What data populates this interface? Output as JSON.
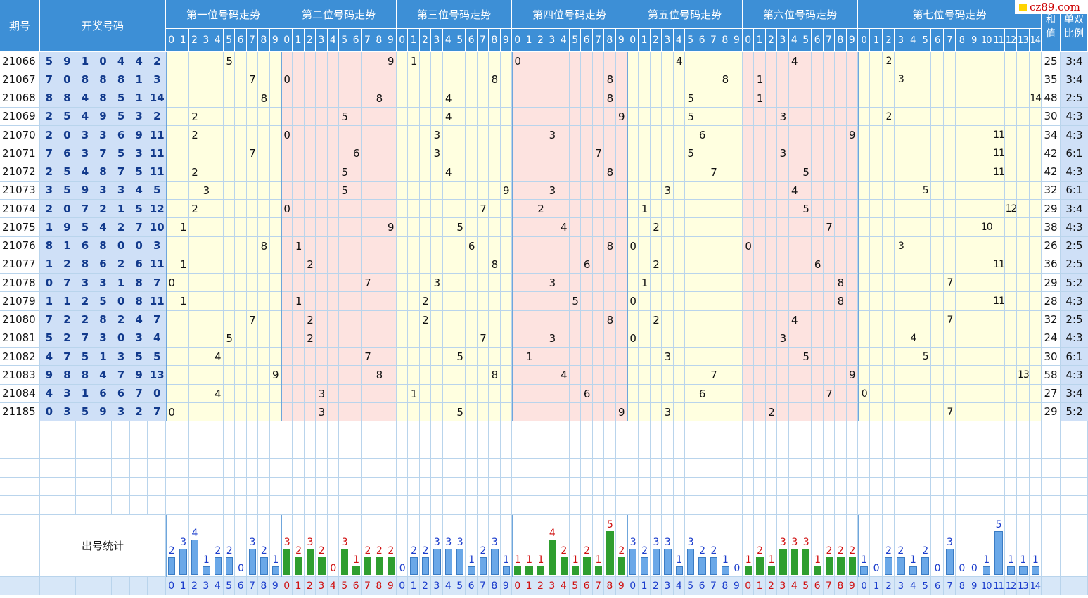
{
  "logo": "cz89.com",
  "headers": {
    "issue": "期号",
    "draw": "开奖号码",
    "positions": [
      "第一位号码走势",
      "第二位号码走势",
      "第三位号码走势",
      "第四位号码走势",
      "第五位号码走势",
      "第六位号码走势",
      "第七位号码走势"
    ],
    "sum_top": "和",
    "sum_bottom": "值",
    "ratio_top": "单双",
    "ratio_bottom": "比例"
  },
  "stat_label": "出号统计",
  "colors": {
    "header": "#3d8fd6",
    "draw_bg": "#cfe0f7",
    "zone_yellow": "#ffffe0",
    "zone_pink": "#fde3e0",
    "bar_blue": "#6aa8e8",
    "bar_green": "#2f9e2f",
    "label_blue": "#1a3ccc",
    "label_red": "#d01010"
  },
  "chart_data": {
    "type": "table",
    "digits_per_position": [
      10,
      10,
      10,
      10,
      10,
      10,
      15
    ],
    "rows": [
      {
        "issue": "21066",
        "draw": [
          5,
          9,
          1,
          0,
          4,
          4,
          2
        ],
        "sum": "25",
        "ratio": "3:4"
      },
      {
        "issue": "21067",
        "draw": [
          7,
          0,
          8,
          8,
          8,
          1,
          3
        ],
        "sum": "35",
        "ratio": "3:4"
      },
      {
        "issue": "21068",
        "draw": [
          8,
          8,
          4,
          8,
          5,
          1,
          14
        ],
        "sum": "48",
        "ratio": "2:5"
      },
      {
        "issue": "21069",
        "draw": [
          2,
          5,
          4,
          9,
          5,
          3,
          2
        ],
        "sum": "30",
        "ratio": "4:3"
      },
      {
        "issue": "21070",
        "draw": [
          2,
          0,
          3,
          3,
          6,
          9,
          11
        ],
        "sum": "34",
        "ratio": "4:3"
      },
      {
        "issue": "21071",
        "draw": [
          7,
          6,
          3,
          7,
          5,
          3,
          11
        ],
        "sum": "42",
        "ratio": "6:1"
      },
      {
        "issue": "21072",
        "draw": [
          2,
          5,
          4,
          8,
          7,
          5,
          11
        ],
        "sum": "42",
        "ratio": "4:3"
      },
      {
        "issue": "21073",
        "draw": [
          3,
          5,
          9,
          3,
          3,
          4,
          5
        ],
        "sum": "32",
        "ratio": "6:1"
      },
      {
        "issue": "21074",
        "draw": [
          2,
          0,
          7,
          2,
          1,
          5,
          12
        ],
        "sum": "29",
        "ratio": "3:4"
      },
      {
        "issue": "21075",
        "draw": [
          1,
          9,
          5,
          4,
          2,
          7,
          10
        ],
        "sum": "38",
        "ratio": "4:3"
      },
      {
        "issue": "21076",
        "draw": [
          8,
          1,
          6,
          8,
          0,
          0,
          3
        ],
        "sum": "26",
        "ratio": "2:5"
      },
      {
        "issue": "21077",
        "draw": [
          1,
          2,
          8,
          6,
          2,
          6,
          11
        ],
        "sum": "36",
        "ratio": "2:5"
      },
      {
        "issue": "21078",
        "draw": [
          0,
          7,
          3,
          3,
          1,
          8,
          7
        ],
        "sum": "29",
        "ratio": "5:2"
      },
      {
        "issue": "21079",
        "draw": [
          1,
          1,
          2,
          5,
          0,
          8,
          11
        ],
        "sum": "28",
        "ratio": "4:3"
      },
      {
        "issue": "21080",
        "draw": [
          7,
          2,
          2,
          8,
          2,
          4,
          7
        ],
        "sum": "32",
        "ratio": "2:5"
      },
      {
        "issue": "21081",
        "draw": [
          5,
          2,
          7,
          3,
          0,
          3,
          4
        ],
        "sum": "24",
        "ratio": "4:3"
      },
      {
        "issue": "21082",
        "draw": [
          4,
          7,
          5,
          1,
          3,
          5,
          5
        ],
        "sum": "30",
        "ratio": "6:1"
      },
      {
        "issue": "21083",
        "draw": [
          9,
          8,
          8,
          4,
          7,
          9,
          13
        ],
        "sum": "58",
        "ratio": "4:3"
      },
      {
        "issue": "21084",
        "draw": [
          4,
          3,
          1,
          6,
          6,
          7,
          0
        ],
        "sum": "27",
        "ratio": "3:4"
      },
      {
        "issue": "21185",
        "draw": [
          0,
          3,
          5,
          9,
          3,
          2,
          7
        ],
        "sum": "29",
        "ratio": "5:2"
      }
    ],
    "statistics": [
      [
        2,
        3,
        4,
        1,
        2,
        2,
        0,
        3,
        2,
        1
      ],
      [
        3,
        2,
        3,
        2,
        0,
        3,
        1,
        2,
        2,
        2
      ],
      [
        0,
        2,
        2,
        3,
        3,
        3,
        1,
        2,
        3,
        1
      ],
      [
        1,
        1,
        1,
        4,
        2,
        1,
        2,
        1,
        5,
        2
      ],
      [
        3,
        2,
        3,
        3,
        1,
        3,
        2,
        2,
        1,
        0
      ],
      [
        1,
        2,
        1,
        3,
        3,
        3,
        1,
        2,
        2,
        2
      ],
      [
        1,
        0,
        2,
        2,
        1,
        2,
        0,
        3,
        0,
        0,
        1,
        5,
        1,
        1,
        1
      ]
    ]
  }
}
